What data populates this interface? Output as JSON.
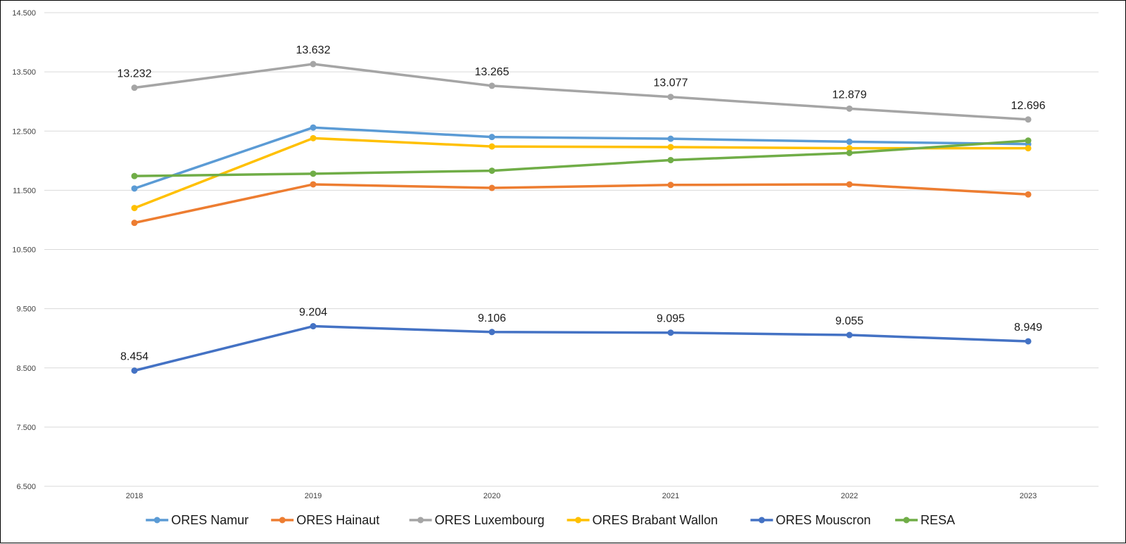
{
  "chart_data": {
    "type": "line",
    "title": "",
    "xlabel": "",
    "ylabel": "",
    "x": [
      "2018",
      "2019",
      "2020",
      "2021",
      "2022",
      "2023"
    ],
    "ylim": [
      6500,
      14500
    ],
    "yticks": [
      6500,
      7500,
      8500,
      9500,
      10500,
      11500,
      12500,
      13500,
      14500
    ],
    "ytick_labels": [
      "6.500",
      "7.500",
      "8.500",
      "9.500",
      "10.500",
      "11.500",
      "12.500",
      "13.500",
      "14.500"
    ],
    "grid": "horizontal",
    "legend_position": "bottom",
    "series": [
      {
        "name": "ORES Namur",
        "color": "#5B9BD5",
        "values": [
          11530,
          12560,
          12400,
          12370,
          12320,
          12280
        ],
        "data_labels": []
      },
      {
        "name": "ORES Hainaut",
        "color": "#ED7D31",
        "values": [
          10950,
          11600,
          11540,
          11590,
          11600,
          11430
        ],
        "data_labels": []
      },
      {
        "name": "ORES Luxembourg",
        "color": "#A5A5A5",
        "values": [
          13232,
          13632,
          13265,
          13077,
          12879,
          12696
        ],
        "data_labels": [
          "13.232",
          "13.632",
          "13.265",
          "13.077",
          "12.879",
          "12.696"
        ]
      },
      {
        "name": "ORES Brabant Wallon",
        "color": "#FFC000",
        "values": [
          11200,
          12380,
          12240,
          12230,
          12210,
          12210
        ],
        "data_labels": []
      },
      {
        "name": "ORES Mouscron",
        "color": "#4472C4",
        "values": [
          8454,
          9204,
          9106,
          9095,
          9055,
          8949
        ],
        "data_labels": [
          "8.454",
          "9.204",
          "9.106",
          "9.095",
          "9.055",
          "8.949"
        ]
      },
      {
        "name": "RESA",
        "color": "#70AD47",
        "values": [
          11740,
          11780,
          11830,
          12010,
          12130,
          12340
        ],
        "data_labels": []
      }
    ]
  }
}
